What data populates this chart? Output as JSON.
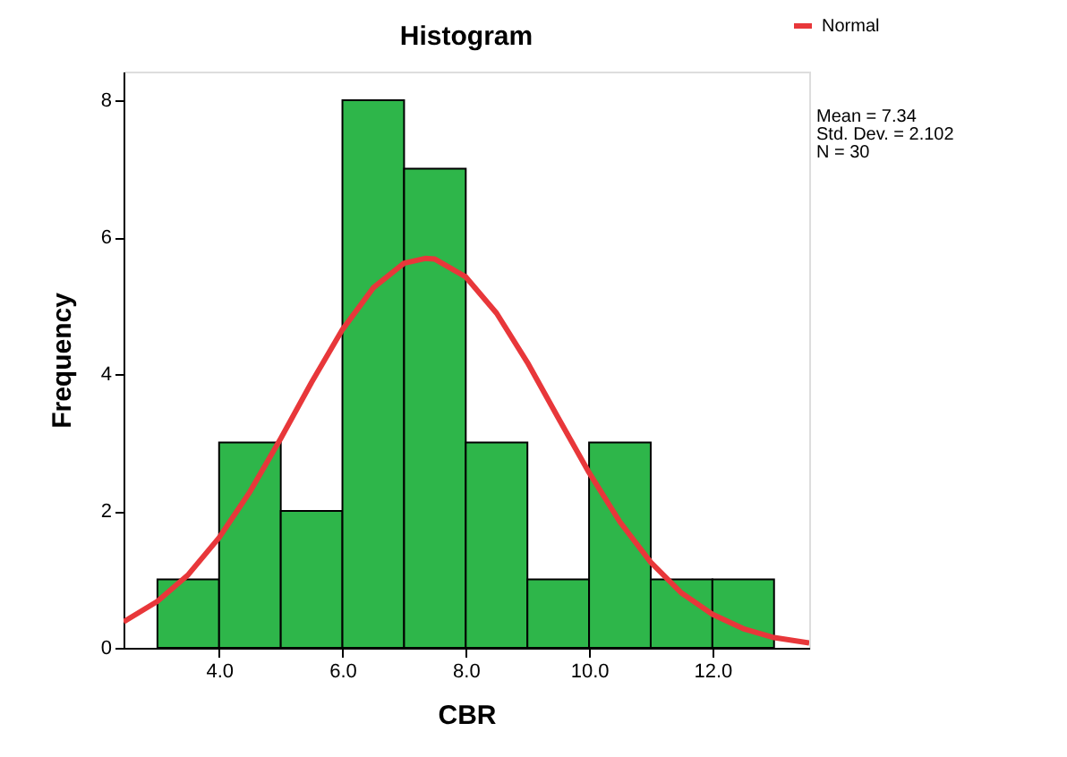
{
  "chart_data": {
    "type": "histogram",
    "title": "Histogram",
    "xlabel": "CBR",
    "ylabel": "Frequency",
    "bins": [
      3,
      4,
      5,
      6,
      7,
      8,
      9,
      10,
      11,
      12,
      13
    ],
    "values": [
      1,
      3,
      2,
      8,
      7,
      3,
      1,
      3,
      1,
      1
    ],
    "color": "#2eb64a",
    "series": [
      {
        "type": "line",
        "name": "Normal",
        "color": "#e8373a",
        "x": [
          2.45,
          3.0,
          3.5,
          4.0,
          4.5,
          5.0,
          5.5,
          6.0,
          6.5,
          7.0,
          7.34,
          7.5,
          8.0,
          8.5,
          9.0,
          9.5,
          10.0,
          10.5,
          11.0,
          11.5,
          12.0,
          12.5,
          13.0,
          13.57
        ],
        "values": [
          0.38,
          0.68,
          1.07,
          1.61,
          2.28,
          3.06,
          3.88,
          4.65,
          5.26,
          5.62,
          5.69,
          5.68,
          5.42,
          4.89,
          4.17,
          3.36,
          2.56,
          1.84,
          1.25,
          0.8,
          0.49,
          0.28,
          0.15,
          0.07
        ]
      }
    ],
    "xlim": [
      2.45,
      13.57
    ],
    "xticks": [
      {
        "value": 4,
        "label": "4.0"
      },
      {
        "value": 6,
        "label": "6.0"
      },
      {
        "value": 8,
        "label": "8.0"
      },
      {
        "value": 10,
        "label": "10.0"
      },
      {
        "value": 12,
        "label": "12.0"
      }
    ],
    "ylim": [
      0,
      8.42
    ],
    "yticks": [
      0,
      2,
      4,
      6,
      8
    ],
    "grid": false,
    "legend": "top right",
    "annotations": [
      "Mean = 7.34",
      "Std. Dev. = 2.102",
      "N = 30"
    ]
  }
}
